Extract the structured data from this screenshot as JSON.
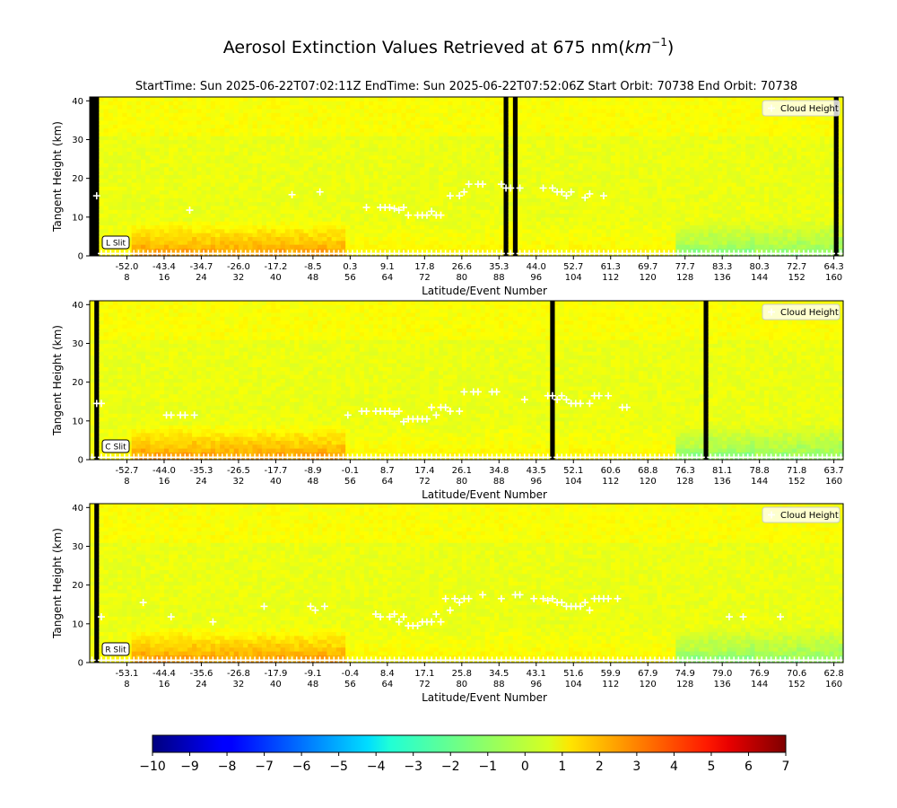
{
  "figure": {
    "title": "Aerosol Extinction Values Retrieved at 675 nm(",
    "title_unit": "km",
    "title_exp": "−1",
    "title_close": ")",
    "subtitle": "StartTime: Sun 2025-06-22T07:02:11Z  EndTime: Sun 2025-06-22T07:52:06Z  Start Orbit: 70738 End Orbit: 70738"
  },
  "chart_data": [
    {
      "type": "heatmap",
      "panel": "L Slit",
      "ylabel": "Tangent Height (km)",
      "xlabel": "Latitude/Event Number",
      "ylim": [
        0,
        41
      ],
      "yticks": [
        0,
        10,
        20,
        30,
        40
      ],
      "legend": {
        "label": "Cloud Height",
        "placement": "top-right"
      },
      "xlim_event": [
        0,
        162
      ],
      "event_ticks": [
        8,
        16,
        24,
        32,
        40,
        48,
        56,
        64,
        72,
        80,
        88,
        96,
        104,
        112,
        120,
        128,
        136,
        144,
        152,
        160
      ],
      "latitude_ticks": [
        "-52.0",
        "-43.4",
        "-34.7",
        "-26.0",
        "-17.2",
        "-8.5",
        "0.3",
        "9.1",
        "17.8",
        "26.6",
        "35.3",
        "44.0",
        "52.7",
        "61.3",
        "69.7",
        "77.7",
        "83.3",
        "80.3",
        "72.7",
        "64.3"
      ],
      "missing_events": [
        0,
        1,
        89,
        91,
        160
      ],
      "cloud_heights": [
        [
          1,
          15.5
        ],
        [
          21,
          11.8
        ],
        [
          43,
          15.8
        ],
        [
          49,
          16.5
        ],
        [
          59,
          12.5
        ],
        [
          62,
          12.5
        ],
        [
          63,
          12.5
        ],
        [
          64,
          12.5
        ],
        [
          65,
          12.2
        ],
        [
          66,
          11.8
        ],
        [
          67,
          12.5
        ],
        [
          68,
          10.5
        ],
        [
          70,
          10.5
        ],
        [
          71,
          10.5
        ],
        [
          72,
          10.5
        ],
        [
          73,
          11.5
        ],
        [
          74,
          10.5
        ],
        [
          75,
          10.5
        ],
        [
          77,
          15.5
        ],
        [
          79,
          15.5
        ],
        [
          80,
          16.5
        ],
        [
          81,
          18.5
        ],
        [
          83,
          18.5
        ],
        [
          84,
          18.5
        ],
        [
          88,
          18.5
        ],
        [
          89,
          17.5
        ],
        [
          90,
          17.5
        ],
        [
          92,
          17.5
        ],
        [
          97,
          17.5
        ],
        [
          99,
          17.5
        ],
        [
          100,
          16.5
        ],
        [
          101,
          16.5
        ],
        [
          102,
          15.5
        ],
        [
          103,
          16.5
        ],
        [
          106,
          15
        ],
        [
          107,
          16
        ],
        [
          110,
          15.5
        ]
      ]
    },
    {
      "type": "heatmap",
      "panel": "C Slit",
      "ylabel": "Tangent Height (km)",
      "xlabel": "Latitude/Event Number",
      "ylim": [
        0,
        41
      ],
      "yticks": [
        0,
        10,
        20,
        30,
        40
      ],
      "legend": {
        "label": "Cloud Height",
        "placement": "top-right"
      },
      "xlim_event": [
        0,
        162
      ],
      "event_ticks": [
        8,
        16,
        24,
        32,
        40,
        48,
        56,
        64,
        72,
        80,
        88,
        96,
        104,
        112,
        120,
        128,
        136,
        144,
        152,
        160
      ],
      "latitude_ticks": [
        "-52.7",
        "-44.0",
        "-35.3",
        "-26.5",
        "-17.7",
        "-8.9",
        "-0.1",
        "8.7",
        "17.4",
        "26.1",
        "34.8",
        "43.5",
        "52.1",
        "60.6",
        "68.8",
        "76.3",
        "81.1",
        "78.8",
        "71.8",
        "63.7"
      ],
      "missing_events": [
        1,
        99,
        132
      ],
      "cloud_heights": [
        [
          1,
          14.5
        ],
        [
          2,
          14.5
        ],
        [
          16,
          11.5
        ],
        [
          17,
          11.5
        ],
        [
          19,
          11.5
        ],
        [
          20,
          11.5
        ],
        [
          22,
          11.5
        ],
        [
          55,
          11.5
        ],
        [
          58,
          12.5
        ],
        [
          59,
          12.5
        ],
        [
          61,
          12.5
        ],
        [
          62,
          12.5
        ],
        [
          63,
          12.5
        ],
        [
          64,
          12.5
        ],
        [
          65,
          11.8
        ],
        [
          66,
          12.5
        ],
        [
          67,
          9.8
        ],
        [
          68,
          10.5
        ],
        [
          69,
          10.5
        ],
        [
          70,
          10.5
        ],
        [
          71,
          10.5
        ],
        [
          72,
          10.5
        ],
        [
          73,
          13.5
        ],
        [
          74,
          11.5
        ],
        [
          75,
          13.5
        ],
        [
          76,
          13.5
        ],
        [
          77,
          12.5
        ],
        [
          79,
          12.5
        ],
        [
          80,
          17.5
        ],
        [
          82,
          17.5
        ],
        [
          83,
          17.5
        ],
        [
          86,
          17.5
        ],
        [
          87,
          17.5
        ],
        [
          93,
          15.5
        ],
        [
          98,
          16.5
        ],
        [
          99,
          16.5
        ],
        [
          100,
          15.5
        ],
        [
          101,
          16.5
        ],
        [
          102,
          15.5
        ],
        [
          103,
          14.5
        ],
        [
          104,
          14.5
        ],
        [
          105,
          14.5
        ],
        [
          107,
          14.5
        ],
        [
          108,
          16.5
        ],
        [
          109,
          16.5
        ],
        [
          111,
          16.5
        ],
        [
          114,
          13.5
        ],
        [
          115,
          13.5
        ]
      ]
    },
    {
      "type": "heatmap",
      "panel": "R Slit",
      "ylabel": "Tangent Height (km)",
      "xlabel": "Latitude/Event Number",
      "ylim": [
        0,
        41
      ],
      "yticks": [
        0,
        10,
        20,
        30,
        40
      ],
      "legend": {
        "label": "Cloud Height",
        "placement": "top-right"
      },
      "xlim_event": [
        0,
        162
      ],
      "event_ticks": [
        8,
        16,
        24,
        32,
        40,
        48,
        56,
        64,
        72,
        80,
        88,
        96,
        104,
        112,
        120,
        128,
        136,
        144,
        152,
        160
      ],
      "latitude_ticks": [
        "-53.1",
        "-44.4",
        "-35.6",
        "-26.8",
        "-17.9",
        "-9.1",
        "-0.4",
        "8.4",
        "17.1",
        "25.8",
        "34.5",
        "43.1",
        "51.6",
        "59.9",
        "67.9",
        "74.9",
        "79.0",
        "76.9",
        "70.6",
        "62.8"
      ],
      "missing_events": [
        1
      ],
      "cloud_heights": [
        [
          2,
          11.8
        ],
        [
          11,
          15.5
        ],
        [
          17,
          11.8
        ],
        [
          26,
          10.5
        ],
        [
          37,
          14.5
        ],
        [
          47,
          14.5
        ],
        [
          48,
          13.5
        ],
        [
          50,
          14.5
        ],
        [
          61,
          12.5
        ],
        [
          62,
          11.8
        ],
        [
          64,
          11.8
        ],
        [
          65,
          12.5
        ],
        [
          66,
          10.5
        ],
        [
          67,
          11.8
        ],
        [
          68,
          9.5
        ],
        [
          69,
          9.5
        ],
        [
          70,
          9.5
        ],
        [
          71,
          10.5
        ],
        [
          72,
          10.5
        ],
        [
          73,
          10.5
        ],
        [
          74,
          12.5
        ],
        [
          75,
          10.5
        ],
        [
          76,
          16.5
        ],
        [
          77,
          13.5
        ],
        [
          78,
          16.5
        ],
        [
          79,
          15.5
        ],
        [
          80,
          16.5
        ],
        [
          81,
          16.5
        ],
        [
          84,
          17.5
        ],
        [
          88,
          16.5
        ],
        [
          91,
          17.5
        ],
        [
          92,
          17.5
        ],
        [
          95,
          16.5
        ],
        [
          97,
          16.5
        ],
        [
          98,
          16
        ],
        [
          99,
          16.5
        ],
        [
          100,
          15.5
        ],
        [
          101,
          15.5
        ],
        [
          102,
          14.5
        ],
        [
          103,
          14.5
        ],
        [
          104,
          14.5
        ],
        [
          105,
          14.5
        ],
        [
          106,
          15.5
        ],
        [
          107,
          13.5
        ],
        [
          108,
          16.5
        ],
        [
          109,
          16.5
        ],
        [
          110,
          16.5
        ],
        [
          111,
          16.5
        ],
        [
          113,
          16.5
        ],
        [
          137,
          11.8
        ],
        [
          140,
          11.8
        ],
        [
          148,
          11.8
        ]
      ]
    }
  ],
  "colorbar": {
    "colormap": "jet",
    "vmin": -10,
    "vmax": 7,
    "ticks": [
      "−10",
      "−9",
      "−8",
      "−7",
      "−6",
      "−5",
      "−4",
      "−3",
      "−2",
      "−1",
      "0",
      "1",
      "2",
      "3",
      "4",
      "5",
      "6",
      "7"
    ]
  }
}
